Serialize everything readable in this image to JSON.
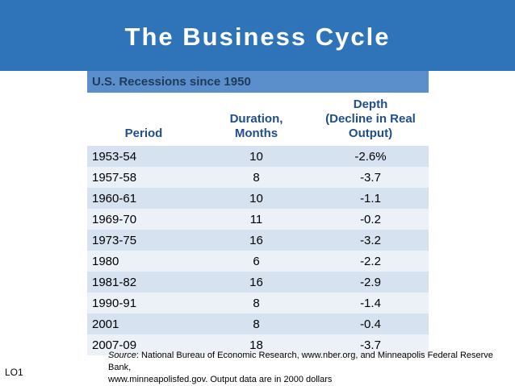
{
  "slide": {
    "title": "The Business Cycle",
    "code": "LO1"
  },
  "table": {
    "subtitle": "U.S. Recessions since 1950",
    "headers": {
      "period": "Period",
      "duration_line1": "Duration,",
      "duration_line2": "Months",
      "depth_line1": "Depth",
      "depth_line2": "(Decline in Real",
      "depth_line3": "Output)"
    },
    "rows": [
      {
        "period": "1953-54",
        "duration": "10",
        "depth": "-2.6%"
      },
      {
        "period": "1957-58",
        "duration": "8",
        "depth": "-3.7"
      },
      {
        "period": "1960-61",
        "duration": "10",
        "depth": "-1.1"
      },
      {
        "period": "1969-70",
        "duration": "11",
        "depth": "-0.2"
      },
      {
        "period": "1973-75",
        "duration": "16",
        "depth": "-3.2"
      },
      {
        "period": "1980",
        "duration": "6",
        "depth": "-2.2"
      },
      {
        "period": "1981-82",
        "duration": "16",
        "depth": "-2.9"
      },
      {
        "period": "1990-91",
        "duration": "8",
        "depth": "-1.4"
      },
      {
        "period": "2001",
        "duration": "8",
        "depth": "-0.4"
      },
      {
        "period": "2007-09",
        "duration": "18",
        "depth": "-3.7"
      }
    ]
  },
  "source": {
    "label": "Source",
    "text_line1": ": National Bureau of Economic Research, www.nber.org, and Minneapolis Federal Reserve Bank,",
    "text_line2": "www.minneapolisfed.gov. Output data are in 2000 dollars"
  },
  "colors": {
    "title_bar": "#2f73b8",
    "subhead": "#5a8fcb",
    "row_shade": "#d6e2f0",
    "row_light": "#ecf1f8",
    "header_text": "#1f4e8a"
  }
}
